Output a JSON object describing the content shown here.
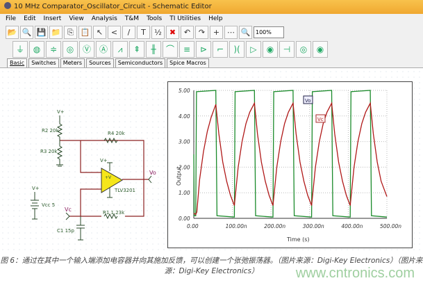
{
  "window": {
    "title": "10 MHz Comparator_Oscillator_Circuit - Schematic Editor"
  },
  "menu": [
    "File",
    "Edit",
    "Insert",
    "View",
    "Analysis",
    "T&M",
    "Tools",
    "TI Utilities",
    "Help"
  ],
  "toolbar": {
    "icons": [
      "open-folder-icon",
      "search-icon",
      "save-icon",
      "open-icon",
      "copy-icon",
      "paste-icon",
      "pointer-icon",
      "wire-icon",
      "pen-icon",
      "text-icon",
      "fraction-icon",
      "delete-icon",
      "undo-icon",
      "redo-icon",
      "plus-icon",
      "grid-icon",
      "zoom-icon"
    ],
    "zoom_value": "100%"
  },
  "components": [
    "ground",
    "voltage-source",
    "battery",
    "ac-source",
    "voltmeter",
    "ammeter",
    "resistor",
    "potentiometer",
    "capacitor",
    "inductor",
    "transformer",
    "diode",
    "switch",
    "relay",
    "opamp",
    "bulb",
    "current-source",
    "clock",
    "lamp"
  ],
  "tabs": [
    "Basic",
    "Switches",
    "Meters",
    "Sources",
    "Semiconductors",
    "Spice Macros"
  ],
  "schematic": {
    "vplus": "V+",
    "r2": "R2 20k",
    "r3": "R3 20k",
    "r4": "R4 20k",
    "opamp": "TLV3201",
    "opamp_pin": "+V",
    "vo": "Vo",
    "vc": "Vc",
    "r1": "R1 1.23k",
    "c1": "C1 15p",
    "vcc": "Vcc 5"
  },
  "chart_data": {
    "type": "line",
    "xlabel": "Time (s)",
    "ylabel": "Output",
    "xlim": [
      0,
      500
    ],
    "ylim": [
      0,
      5
    ],
    "xticks": [
      "0.00",
      "100.00n",
      "200.00n",
      "300.00n",
      "400.00n",
      "500.00n"
    ],
    "yticks": [
      "0.00",
      "1.00",
      "2.00",
      "3.00",
      "4.00",
      "5.00"
    ],
    "grid": true,
    "series": [
      {
        "name": "Vo",
        "color": "#1a8a2a",
        "points": [
          [
            0,
            2.5
          ],
          [
            1,
            0.1
          ],
          [
            5,
            0.1
          ],
          [
            7,
            4.95
          ],
          [
            57,
            5
          ],
          [
            60,
            0.1
          ],
          [
            105,
            0.05
          ],
          [
            107,
            4.95
          ],
          [
            157,
            5
          ],
          [
            160,
            0.1
          ],
          [
            205,
            0.05
          ],
          [
            207,
            4.95
          ],
          [
            257,
            5
          ],
          [
            260,
            0.1
          ],
          [
            305,
            0.05
          ],
          [
            307,
            4.95
          ],
          [
            357,
            5
          ],
          [
            360,
            0.1
          ],
          [
            405,
            0.05
          ],
          [
            407,
            4.95
          ],
          [
            457,
            5
          ],
          [
            460,
            0.1
          ],
          [
            500,
            0.05
          ]
        ]
      },
      {
        "name": "Vc",
        "color": "#b01818",
        "points": [
          [
            0,
            0.2
          ],
          [
            5,
            0.15
          ],
          [
            8,
            0.25
          ],
          [
            15,
            1.5
          ],
          [
            25,
            2.6
          ],
          [
            35,
            3.4
          ],
          [
            45,
            3.95
          ],
          [
            57,
            4.45
          ],
          [
            65,
            3.3
          ],
          [
            75,
            2.2
          ],
          [
            85,
            1.45
          ],
          [
            95,
            0.9
          ],
          [
            105,
            0.5
          ],
          [
            115,
            2.0
          ],
          [
            125,
            3.0
          ],
          [
            135,
            3.7
          ],
          [
            145,
            4.15
          ],
          [
            157,
            4.5
          ],
          [
            165,
            3.3
          ],
          [
            175,
            2.2
          ],
          [
            185,
            1.45
          ],
          [
            195,
            0.9
          ],
          [
            205,
            0.5
          ],
          [
            215,
            2.0
          ],
          [
            225,
            3.0
          ],
          [
            235,
            3.7
          ],
          [
            245,
            4.15
          ],
          [
            257,
            4.5
          ],
          [
            265,
            3.3
          ],
          [
            275,
            2.2
          ],
          [
            285,
            1.45
          ],
          [
            295,
            0.9
          ],
          [
            305,
            0.5
          ],
          [
            315,
            2.0
          ],
          [
            325,
            3.0
          ],
          [
            335,
            3.7
          ],
          [
            345,
            4.15
          ],
          [
            357,
            4.5
          ],
          [
            365,
            3.3
          ],
          [
            375,
            2.2
          ],
          [
            385,
            1.45
          ],
          [
            395,
            0.9
          ],
          [
            405,
            0.5
          ],
          [
            415,
            2.0
          ],
          [
            425,
            3.0
          ],
          [
            435,
            3.7
          ],
          [
            445,
            4.15
          ],
          [
            457,
            4.5
          ],
          [
            465,
            3.3
          ],
          [
            475,
            2.2
          ],
          [
            485,
            1.45
          ],
          [
            500,
            0.85
          ]
        ]
      }
    ]
  },
  "caption": "图 6：通过在其中一个输入端添加电容器并向其施加反馈，可以创建一个张弛振荡器。（图片来源：Digi-Key Electronics）（图片来源：Digi-Key Electronics）",
  "watermark": "www.cntronics.com"
}
